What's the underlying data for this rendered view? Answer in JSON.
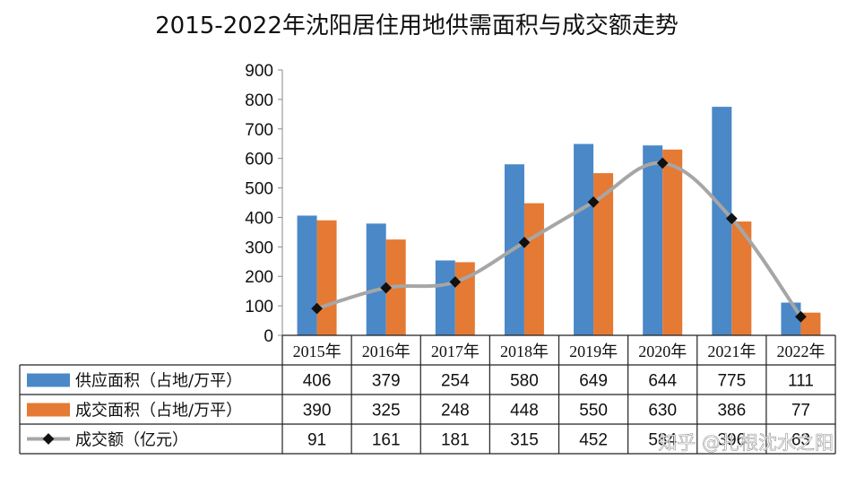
{
  "watermark": "知乎 @扎根沈水之阳",
  "colors": {
    "supply": "#4a88c8",
    "deal": "#e57a34",
    "amount": "#a6a6a6",
    "marker": "#111111"
  },
  "chart_data": {
    "type": "bar",
    "title": "2015-2022年沈阳居住用地供需面积与成交额走势",
    "categories": [
      "2015年",
      "2016年",
      "2017年",
      "2018年",
      "2019年",
      "2020年",
      "2021年",
      "2022年"
    ],
    "ylim": [
      0,
      900
    ],
    "yticks": [
      "0",
      "100",
      "200",
      "300",
      "400",
      "500",
      "600",
      "700",
      "800",
      "900"
    ],
    "grid": false,
    "legend": "data-table",
    "series": [
      {
        "name": "供应面积（占地/万平）",
        "kind": "bar",
        "values": [
          406,
          379,
          254,
          580,
          649,
          644,
          775,
          111
        ]
      },
      {
        "name": "成交面积（占地/万平）",
        "kind": "bar",
        "values": [
          390,
          325,
          248,
          448,
          550,
          630,
          386,
          77
        ]
      },
      {
        "name": "成交额（亿元）",
        "kind": "line",
        "values": [
          91,
          161,
          181,
          315,
          452,
          584,
          396,
          63
        ]
      }
    ]
  }
}
